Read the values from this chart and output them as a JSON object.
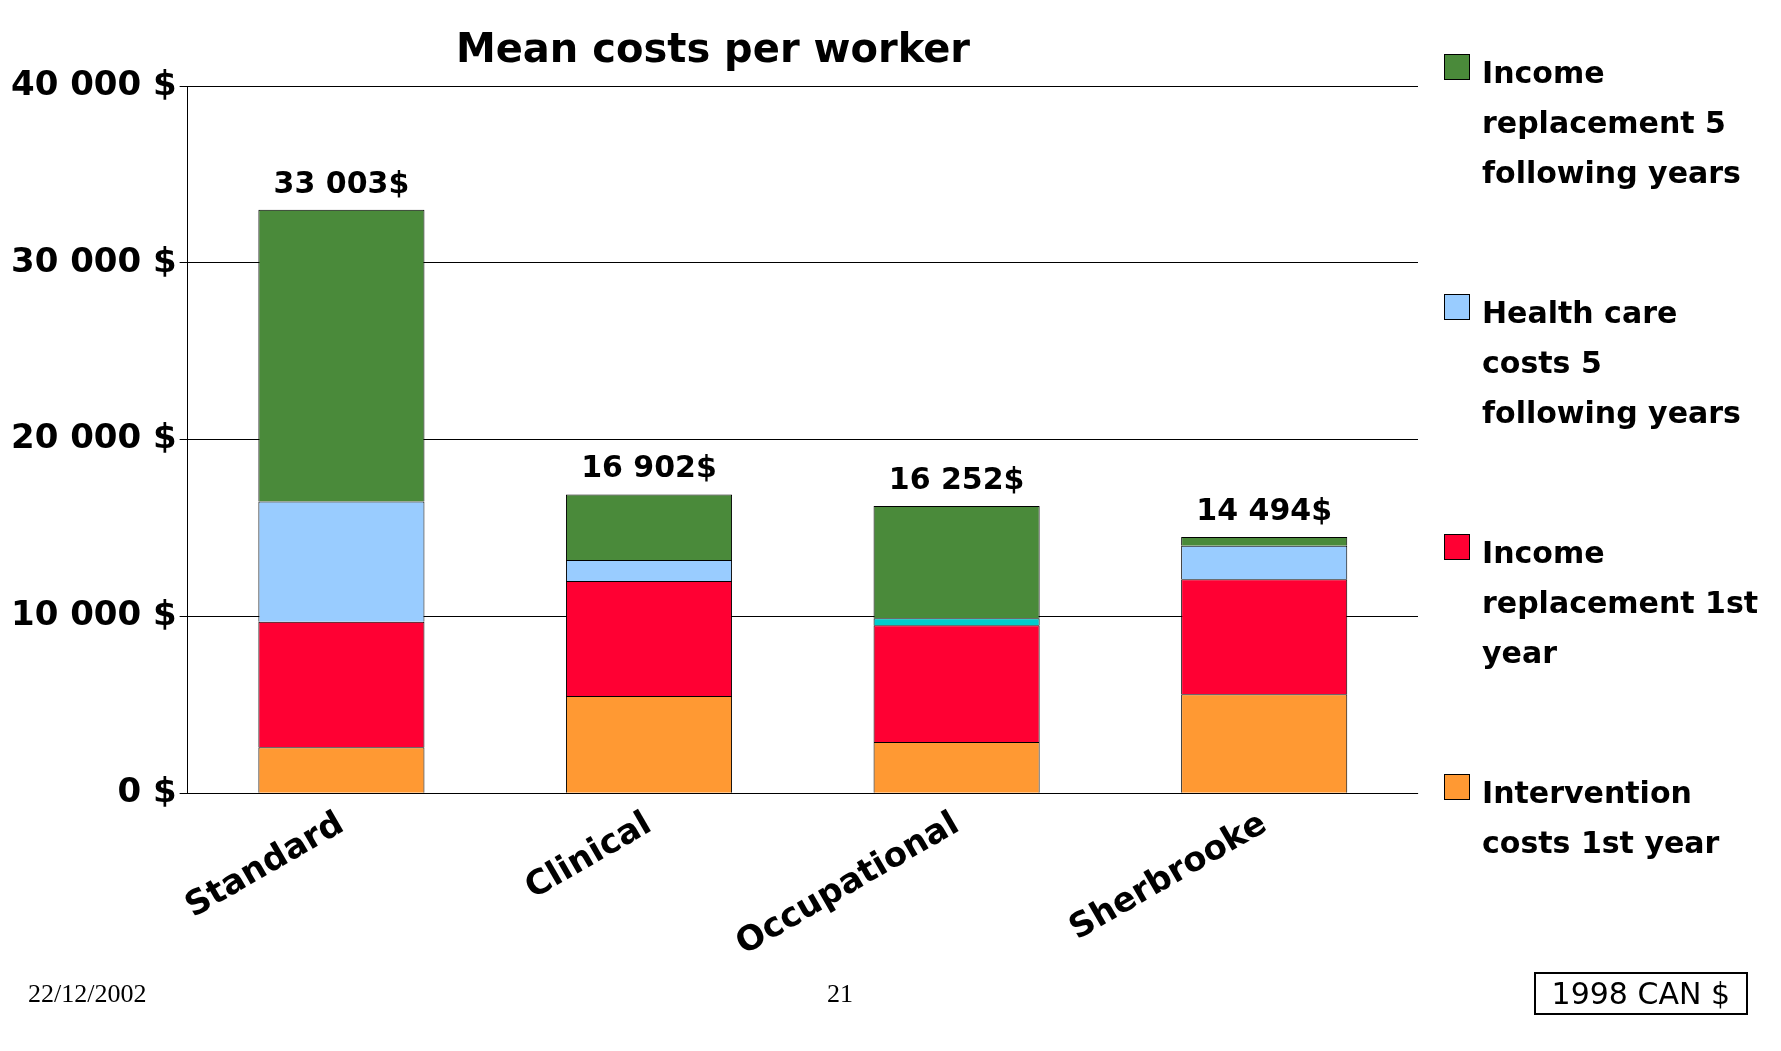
{
  "chart_data": {
    "type": "bar",
    "title": "Mean costs per worker",
    "stacked": true,
    "categories": [
      "Standard",
      "Clinical",
      "Occupational",
      "Sherbrooke"
    ],
    "series": [
      {
        "name": "Intervention costs 1st year",
        "color": "#ff9933",
        "values": [
          2600,
          5500,
          2900,
          5600
        ]
      },
      {
        "name": "Income replacement 1st year",
        "color": "#ff0033",
        "values": [
          7100,
          6500,
          6600,
          6500
        ]
      },
      {
        "name": "Health care costs 5 following years",
        "color": "#99ccff",
        "colors": [
          "#99ccff",
          "#99ccff",
          "#00cccc",
          "#99ccff"
        ],
        "values": [
          6800,
          1200,
          400,
          1900
        ]
      },
      {
        "name": "Income replacement 5 following years",
        "color": "#4a8a3a",
        "values": [
          16503,
          3700,
          6350,
          494
        ]
      }
    ],
    "ylim": [
      0,
      40000
    ],
    "yticks": [
      {
        "value": 0,
        "label": "0 $"
      },
      {
        "value": 10000,
        "label": "10 000 $"
      },
      {
        "value": 20000,
        "label": "20 000 $"
      },
      {
        "value": 30000,
        "label": "30 000 $"
      },
      {
        "value": 40000,
        "label": "40 000 $"
      }
    ],
    "grid": "y",
    "legend": "right",
    "totals": [
      "33 003$",
      "16 902$",
      "16 252$",
      "14 494$"
    ],
    "annotations": [
      "22/12/2002",
      "21",
      "1998 CAN $"
    ]
  }
}
